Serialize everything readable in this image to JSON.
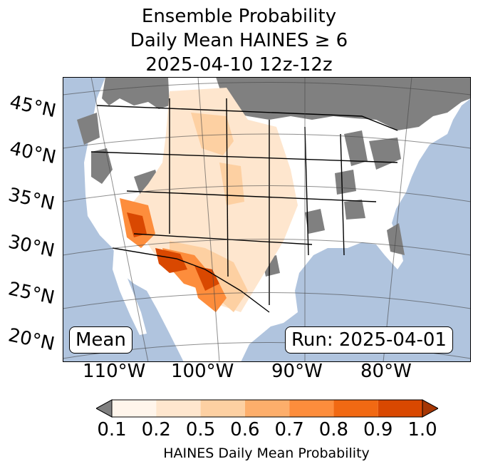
{
  "title": {
    "line1": "Ensemble Probability",
    "line2": "Daily Mean HAINES ≥ 6",
    "line3": "2025-04-10 12z-12z"
  },
  "map": {
    "ocean_color": "#b0c4de",
    "nodata_color": "#808080",
    "land_color": "#ffffff",
    "lat_labels": [
      "45°N",
      "40°N",
      "35°N",
      "30°N",
      "25°N",
      "20°N"
    ],
    "lon_labels": [
      "110°W",
      "100°W",
      "90°W",
      "80°W"
    ],
    "stat_box": "Mean",
    "run_box": "Run: 2025-04-01"
  },
  "colorbar": {
    "ticks": [
      "0.1",
      "0.2",
      "0.5",
      "0.6",
      "0.7",
      "0.8",
      "0.9",
      "1.0"
    ],
    "colors": [
      "#fff5eb",
      "#fee6ce",
      "#fdd0a2",
      "#fdae6b",
      "#fd8d3c",
      "#f16913",
      "#d94801"
    ],
    "under_color": "#808080",
    "over_color": "#a63603",
    "label": "HAINES Daily Mean Probability"
  }
}
